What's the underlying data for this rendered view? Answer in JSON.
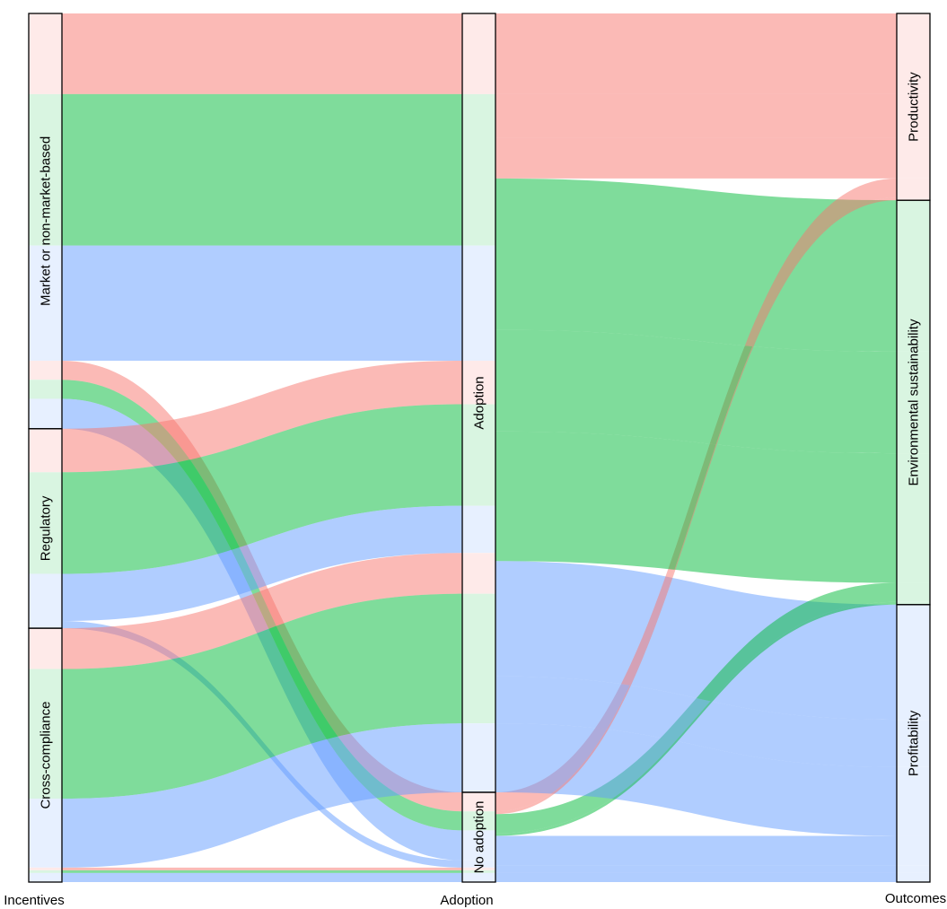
{
  "chart_data": {
    "type": "alluvial",
    "title": "",
    "axes": [
      "Incentives",
      "Adoption",
      "Outcomes"
    ],
    "strata": {
      "Incentives": [
        "Market or non-market-based",
        "Regulatory",
        "Cross-compliance"
      ],
      "Adoption": [
        "Adoption",
        "No adoption"
      ],
      "Outcomes": [
        "Productivity",
        "Environmental sustainability",
        "Profitability"
      ]
    },
    "colors": {
      "Productivity": "#f8766d",
      "Environmental sustainability": "#00ba38",
      "Profitability": "#619cff"
    },
    "flow_alpha": 0.5,
    "flows": [
      {
        "incentive": "Market or non-market-based",
        "adoption": "Adoption",
        "outcome": "Productivity",
        "value": 89
      },
      {
        "incentive": "Market or non-market-based",
        "adoption": "Adoption",
        "outcome": "Environmental sustainability",
        "value": 167
      },
      {
        "incentive": "Market or non-market-based",
        "adoption": "Adoption",
        "outcome": "Profitability",
        "value": 127
      },
      {
        "incentive": "Market or non-market-based",
        "adoption": "No adoption",
        "outcome": "Productivity",
        "value": 21
      },
      {
        "incentive": "Market or non-market-based",
        "adoption": "No adoption",
        "outcome": "Environmental sustainability",
        "value": 21
      },
      {
        "incentive": "Market or non-market-based",
        "adoption": "No adoption",
        "outcome": "Profitability",
        "value": 33
      },
      {
        "incentive": "Regulatory",
        "adoption": "Adoption",
        "outcome": "Productivity",
        "value": 48
      },
      {
        "incentive": "Regulatory",
        "adoption": "Adoption",
        "outcome": "Environmental sustainability",
        "value": 112
      },
      {
        "incentive": "Regulatory",
        "adoption": "Adoption",
        "outcome": "Profitability",
        "value": 52
      },
      {
        "incentive": "Regulatory",
        "adoption": "No adoption",
        "outcome": "Productivity",
        "value": 0
      },
      {
        "incentive": "Regulatory",
        "adoption": "No adoption",
        "outcome": "Environmental sustainability",
        "value": 0
      },
      {
        "incentive": "Regulatory",
        "adoption": "No adoption",
        "outcome": "Profitability",
        "value": 8
      },
      {
        "incentive": "Cross-compliance",
        "adoption": "Adoption",
        "outcome": "Productivity",
        "value": 45
      },
      {
        "incentive": "Cross-compliance",
        "adoption": "Adoption",
        "outcome": "Environmental sustainability",
        "value": 143
      },
      {
        "incentive": "Cross-compliance",
        "adoption": "Adoption",
        "outcome": "Profitability",
        "value": 76
      },
      {
        "incentive": "Cross-compliance",
        "adoption": "No adoption",
        "outcome": "Productivity",
        "value": 3
      },
      {
        "incentive": "Cross-compliance",
        "adoption": "No adoption",
        "outcome": "Environmental sustainability",
        "value": 3
      },
      {
        "incentive": "Cross-compliance",
        "adoption": "No adoption",
        "outcome": "Profitability",
        "value": 10
      }
    ],
    "legend": "none",
    "grid": false
  }
}
